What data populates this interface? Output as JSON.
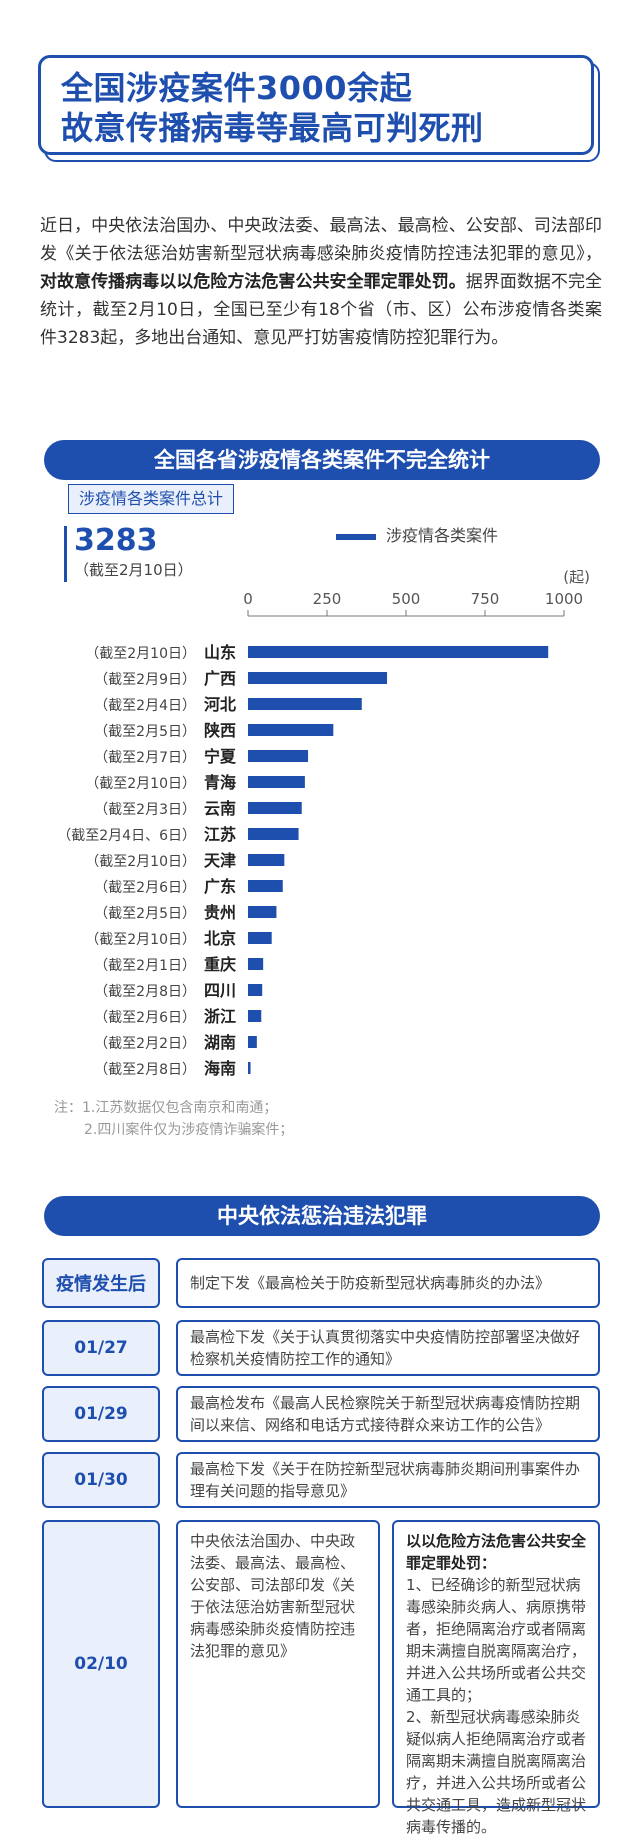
{
  "title": {
    "line1": "全国涉疫案件3000余起",
    "line2": "故意传播病毒等最高可判死刑"
  },
  "intro": {
    "part1": "近日，中央依法治国办、中央政法委、最高法、最高检、公安部、司法部印发《关于依法惩治妨害新型冠状病毒感染肺炎疫情防控违法犯罪的意见》，",
    "bold": "对故意传播病毒以以危险方法危害公共安全罪定罪处罚。",
    "part2": "据界面数据不完全统计，截至2月10日，全国已至少有18个省（市、区）公布涉疫情各类案件3283起，多地出台通知、意见严打妨害疫情防控犯罪行为。"
  },
  "section1_title": "全国各省涉疫情各类案件不完全统计",
  "total": {
    "label": "涉疫情各类案件总计",
    "value": "3283",
    "date": "（截至2月10日）"
  },
  "chart_data": {
    "type": "bar",
    "orientation": "horizontal",
    "legend": [
      "涉疫情各类案件"
    ],
    "legend_position": "top-right",
    "unit": "(起)",
    "xlim": [
      0,
      1000
    ],
    "xticks": [
      "0",
      "250",
      "500",
      "750",
      "1000"
    ],
    "xtick_values": [
      0,
      250,
      500,
      750,
      1000
    ],
    "categories": [
      {
        "dates": "（截至2月10日）",
        "name": "山东",
        "value": 950
      },
      {
        "dates": "（截至2月9日）",
        "name": "广西",
        "value": 440
      },
      {
        "dates": "（截至2月4日）",
        "name": "河北",
        "value": 360
      },
      {
        "dates": "（截至2月5日）",
        "name": "陕西",
        "value": 270
      },
      {
        "dates": "（截至2月7日）",
        "name": "宁夏",
        "value": 190
      },
      {
        "dates": "（截至2月10日）",
        "name": "青海",
        "value": 180
      },
      {
        "dates": "（截至2月3日）",
        "name": "云南",
        "value": 170
      },
      {
        "dates": "（截至2月4日、6日）",
        "name": "江苏",
        "value": 160
      },
      {
        "dates": "（截至2月10日）",
        "name": "天津",
        "value": 115
      },
      {
        "dates": "（截至2月6日）",
        "name": "广东",
        "value": 110
      },
      {
        "dates": "（截至2月5日）",
        "name": "贵州",
        "value": 90
      },
      {
        "dates": "（截至2月10日）",
        "name": "北京",
        "value": 75
      },
      {
        "dates": "（截至2月1日）",
        "name": "重庆",
        "value": 48
      },
      {
        "dates": "（截至2月8日）",
        "name": "四川",
        "value": 45
      },
      {
        "dates": "（截至2月6日）",
        "name": "浙江",
        "value": 42
      },
      {
        "dates": "（截至2月2日）",
        "name": "湖南",
        "value": 28
      },
      {
        "dates": "（截至2月8日）",
        "name": "海南",
        "value": 8
      }
    ]
  },
  "notes": {
    "line1": "注：1.江苏数据仅包含南京和南通；",
    "line2": "2.四川案件仅为涉疫情诈骗案件；"
  },
  "section2_title": "中央依法惩治违法犯罪",
  "timeline": [
    {
      "date": "疫情发生后",
      "desc": "制定下发《最高检关于防疫新型冠状病毒肺炎的办法》"
    },
    {
      "date": "01/27",
      "desc": "最高检下发《关于认真贯彻落实中央疫情防控部署坚决做好检察机关疫情防控工作的通知》"
    },
    {
      "date": "01/29",
      "desc": "最高检发布《最高人民检察院关于新型冠状病毒疫情防控期间以来信、网络和电话方式接待群众来访工作的公告》"
    },
    {
      "date": "01/30",
      "desc": "最高检下发《关于在防控新型冠状病毒肺炎期间刑事案件办理有关问题的指导意见》"
    }
  ],
  "last": {
    "date": "02/10",
    "left": "中央依法治国办、中央政法委、最高法、最高检、公安部、司法部印发《关于依法惩治妨害新型冠状病毒感染肺炎疫情防控违法犯罪的意见》",
    "right_title": "以以危险方法危害公共安全罪定罪处罚：",
    "right_p1": "1、已经确诊的新型冠状病毒感染肺炎病人、病原携带者，拒绝隔离治疗或者隔离期未满擅自脱离隔离治疗，并进入公共场所或者公共交通工具的；",
    "right_p2": "2、新型冠状病毒感染肺炎疑似病人拒绝隔离治疗或者隔离期未满擅自脱离隔离治疗，并进入公共场所或者公共交通工具，造成新型冠状病毒传播的。"
  },
  "colors": {
    "primary": "#1f4fae",
    "light": "#eaf0fb"
  }
}
